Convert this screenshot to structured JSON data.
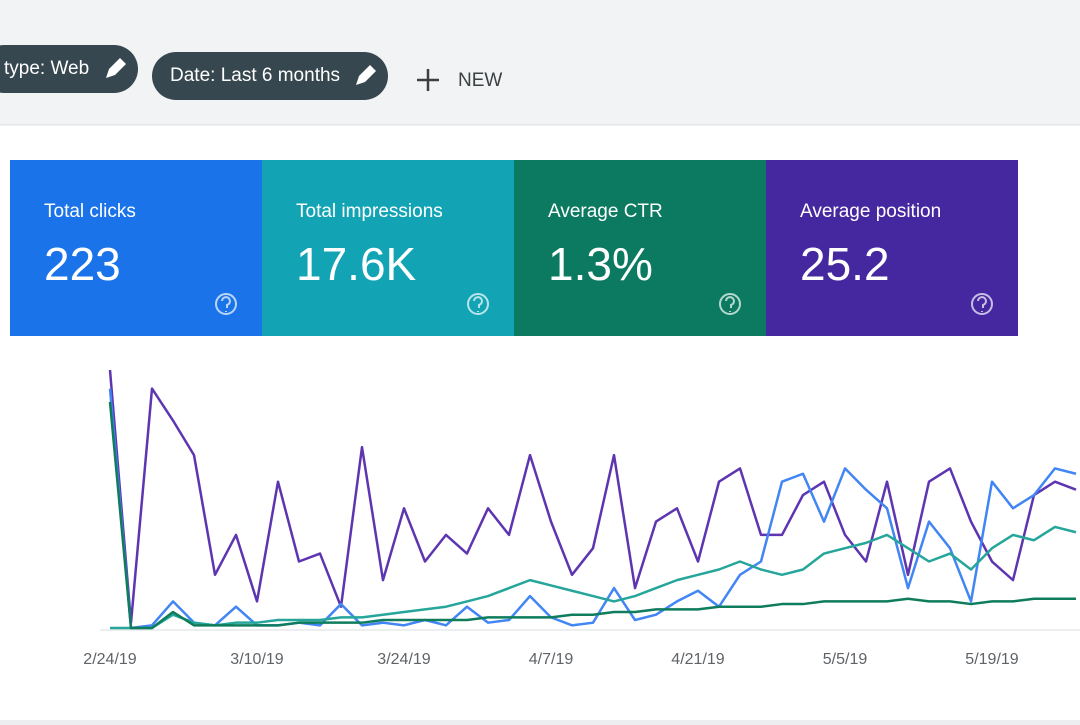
{
  "filters": [
    "type: Web",
    "Date: Last 6 months"
  ],
  "new_button": "NEW",
  "cards": [
    {
      "label": "Total clicks",
      "value": "223",
      "color": "#1a73e8"
    },
    {
      "label": "Total impressions",
      "value": "17.6K",
      "color": "#12a4b4"
    },
    {
      "label": "Average CTR",
      "value": "1.3%",
      "color": "#0b7a60"
    },
    {
      "label": "Average position",
      "value": "25.2",
      "color": "#4527a0"
    }
  ],
  "chart_data": {
    "type": "line",
    "categories": [
      "2/24/19",
      null,
      null,
      null,
      null,
      null,
      null,
      "3/10/19",
      null,
      null,
      null,
      null,
      null,
      null,
      "3/24/19",
      null,
      null,
      null,
      null,
      null,
      null,
      "4/7/19",
      null,
      null,
      null,
      null,
      null,
      null,
      "4/21/19",
      null,
      null,
      null,
      null,
      null,
      null,
      "5/5/19",
      null,
      null,
      null,
      null,
      null,
      null,
      "5/19/19",
      null,
      null,
      null,
      null
    ],
    "series": [
      {
        "color": "#5e35b1",
        "values": [
          97,
          2,
          90,
          78,
          65,
          20,
          35,
          10,
          55,
          25,
          28,
          8,
          68,
          18,
          45,
          25,
          35,
          28,
          45,
          35,
          65,
          40,
          20,
          30,
          65,
          15,
          40,
          45,
          25,
          55,
          60,
          35,
          35,
          50,
          55,
          35,
          25,
          55,
          20,
          55,
          60,
          40,
          25,
          18,
          50,
          55,
          52
        ]
      },
      {
        "color": "#4285f4",
        "values": [
          90,
          0,
          1,
          10,
          2,
          1,
          8,
          1,
          1,
          2,
          1,
          9,
          1,
          2,
          1,
          3,
          1,
          8,
          2,
          3,
          12,
          4,
          1,
          2,
          15,
          3,
          5,
          10,
          14,
          8,
          20,
          25,
          55,
          58,
          40,
          60,
          52,
          45,
          15,
          40,
          30,
          10,
          55,
          45,
          50,
          60,
          58
        ]
      },
      {
        "color": "#26a69a",
        "values": [
          0,
          0,
          0,
          5,
          2,
          1,
          2,
          2,
          3,
          3,
          3,
          4,
          4,
          5,
          6,
          7,
          8,
          10,
          12,
          15,
          18,
          16,
          14,
          12,
          10,
          12,
          15,
          18,
          20,
          22,
          25,
          22,
          20,
          22,
          28,
          30,
          32,
          35,
          30,
          25,
          28,
          22,
          30,
          35,
          33,
          38,
          36
        ]
      },
      {
        "color": "#0f7c5c",
        "values": [
          85,
          0,
          0,
          6,
          1,
          1,
          1,
          1,
          1,
          2,
          2,
          2,
          2,
          3,
          3,
          3,
          3,
          3,
          4,
          4,
          4,
          4,
          5,
          5,
          6,
          6,
          7,
          7,
          7,
          8,
          8,
          8,
          9,
          9,
          10,
          10,
          10,
          10,
          11,
          10,
          10,
          9,
          10,
          10,
          11,
          11,
          11
        ]
      }
    ]
  }
}
